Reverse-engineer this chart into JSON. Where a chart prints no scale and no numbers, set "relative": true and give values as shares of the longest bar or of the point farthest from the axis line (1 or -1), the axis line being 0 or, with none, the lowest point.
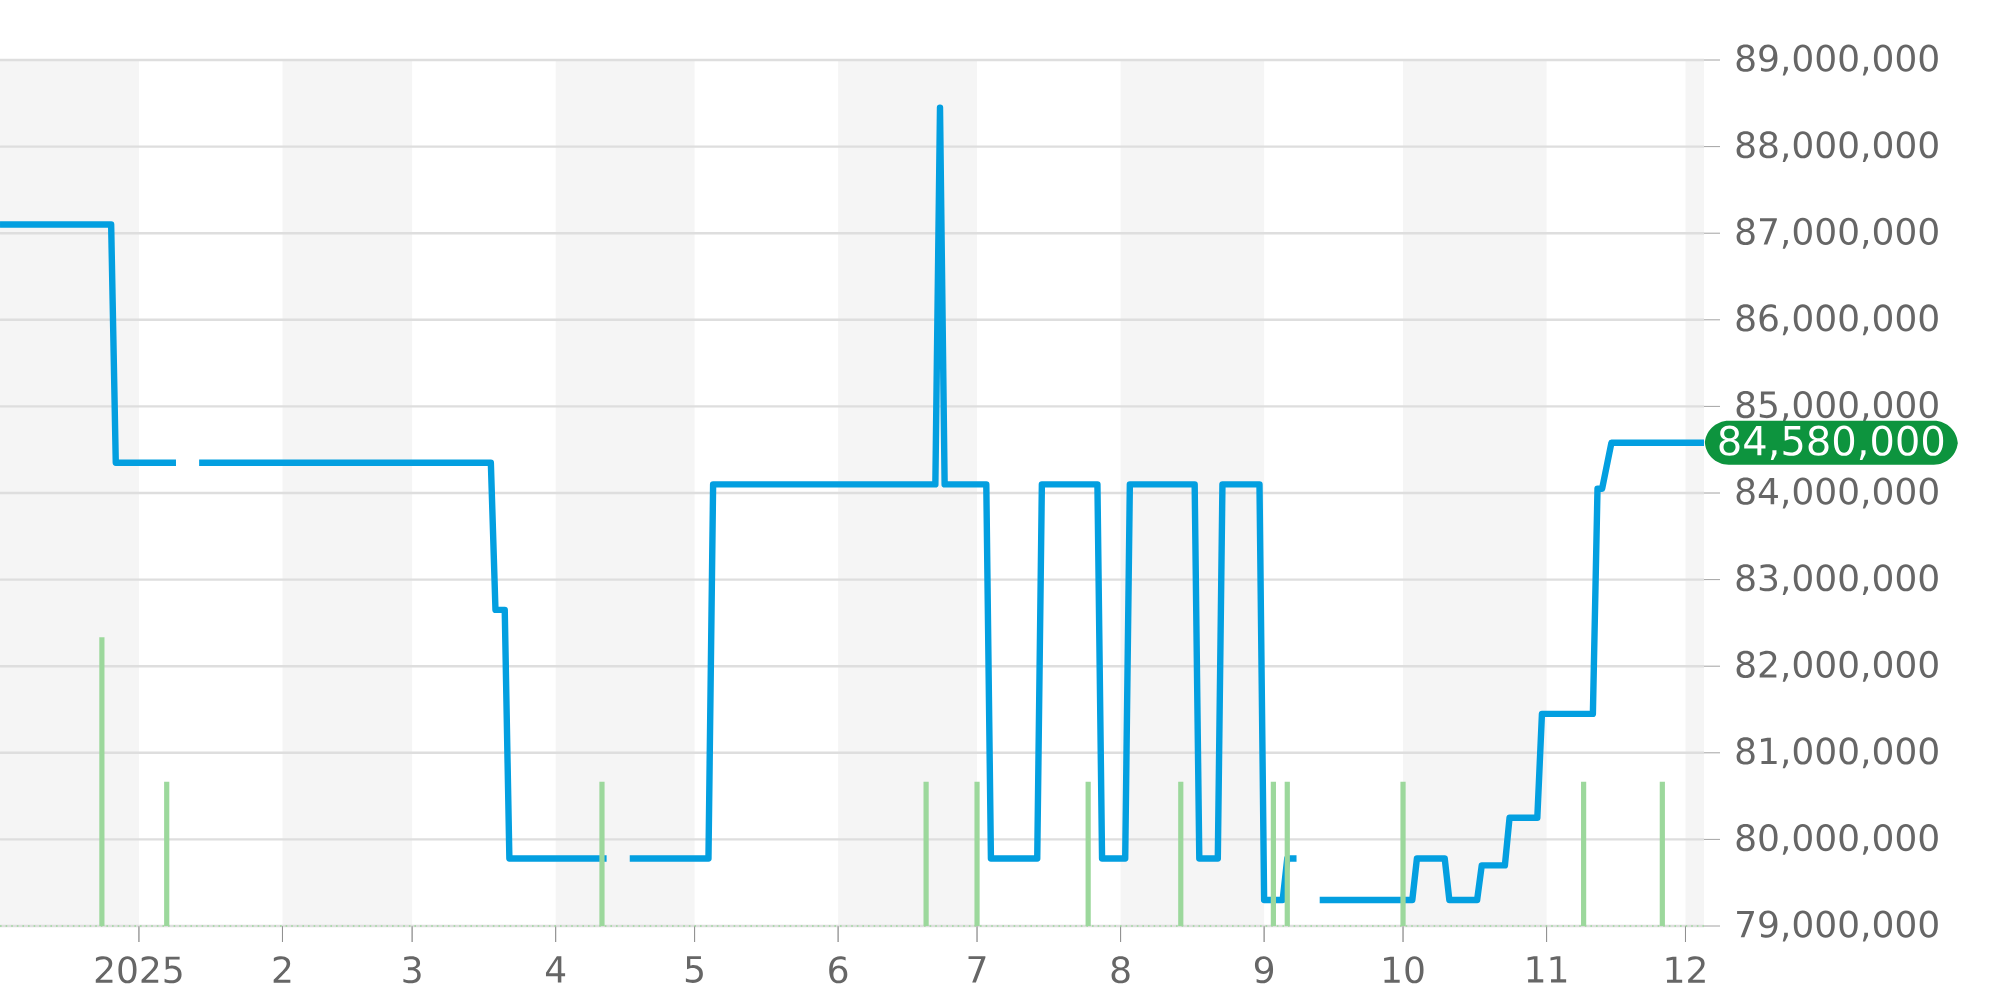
{
  "chart_data": [
    {
      "type": "line",
      "xlim": [
        "2024-12-02",
        "2025-12-05"
      ],
      "xticks": [
        {
          "value": "2025-01-01",
          "label": null
        },
        {
          "value": "2025-02-01",
          "label": null
        },
        {
          "value": "2025-03-01",
          "label": null
        },
        {
          "value": "2025-04-01",
          "label": null
        },
        {
          "value": "2025-05-01",
          "label": null
        },
        {
          "value": "2025-06-01",
          "label": null
        },
        {
          "value": "2025-07-01",
          "label": null
        },
        {
          "value": "2025-08-01",
          "label": null
        },
        {
          "value": "2025-09-01",
          "label": null
        },
        {
          "value": "2025-10-01",
          "label": null
        },
        {
          "value": "2025-11-01",
          "label": null
        },
        {
          "value": "2025-12-01",
          "label": null
        }
      ],
      "ylim": [
        79000000,
        89000000
      ],
      "yticks": [
        {
          "value": 79000000,
          "label": "79,000,000"
        },
        {
          "value": 80000000,
          "label": "80,000,000"
        },
        {
          "value": 81000000,
          "label": "81,000,000"
        },
        {
          "value": 82000000,
          "label": "82,000,000"
        },
        {
          "value": 83000000,
          "label": "83,000,000"
        },
        {
          "value": 84000000,
          "label": "84,000,000"
        },
        {
          "value": 85000000,
          "label": "85,000,000"
        },
        {
          "value": 86000000,
          "label": "86,000,000"
        },
        {
          "value": 87000000,
          "label": "87,000,000"
        },
        {
          "value": 88000000,
          "label": "88,000,000"
        },
        {
          "value": 89000000,
          "label": "89,000,000"
        }
      ],
      "grid": "y",
      "tick_labels": "y",
      "bands": [
        {
          "axis": "x",
          "from": "2024-12-02",
          "to": "2025-01-01",
          "color": "#f5f5f5"
        },
        {
          "axis": "x",
          "from": "2025-02-01",
          "to": "2025-03-01",
          "color": "#f5f5f5"
        },
        {
          "axis": "x",
          "from": "2025-04-01",
          "to": "2025-05-01",
          "color": "#f5f5f5"
        },
        {
          "axis": "x",
          "from": "2025-06-01",
          "to": "2025-07-01",
          "color": "#f5f5f5"
        },
        {
          "axis": "x",
          "from": "2025-08-01",
          "to": "2025-09-01",
          "color": "#f5f5f5"
        },
        {
          "axis": "x",
          "from": "2025-10-01",
          "to": "2025-11-01",
          "color": "#f5f5f5"
        },
        {
          "axis": "x",
          "from": "2025-12-01",
          "to": "2025-12-05",
          "color": "#f5f5f5"
        }
      ],
      "annotations": [
        {
          "text": "84,580,000",
          "x": "2025-12-05",
          "y": 84580000
        }
      ],
      "series": [
        {
          "color": "#039fe0",
          "x": [
            "2024-12-02",
            "2024-12-26",
            "2024-12-27",
            "2025-01-09",
            "2025-01-11",
            "2025-01-14",
            "2025-03-18",
            "2025-03-19",
            "2025-03-21",
            "2025-03-22",
            "2025-04-12",
            "2025-04-14",
            "2025-04-17",
            "2025-05-04",
            "2025-05-05",
            "2025-06-22",
            "2025-06-23",
            "2025-06-24",
            "2025-07-03",
            "2025-07-04",
            "2025-07-14",
            "2025-07-15",
            "2025-07-27",
            "2025-07-28",
            "2025-08-02",
            "2025-08-03",
            "2025-08-17",
            "2025-08-18",
            "2025-08-22",
            "2025-08-23",
            "2025-08-31",
            "2025-09-01",
            "2025-09-05",
            "2025-09-06",
            "2025-09-08",
            "2025-09-10",
            "2025-09-13",
            "2025-10-03",
            "2025-10-04",
            "2025-10-10",
            "2025-10-11",
            "2025-10-17",
            "2025-10-18",
            "2025-10-23",
            "2025-10-24",
            "2025-10-30",
            "2025-10-31",
            "2025-11-11",
            "2025-11-12",
            "2025-11-13",
            "2025-11-15",
            "2025-12-05"
          ],
          "values": [
            87100000,
            87100000,
            84350000,
            84350000,
            null,
            84350000,
            84350000,
            82650000,
            82650000,
            79780000,
            79780000,
            null,
            79780000,
            79780000,
            84100000,
            84100000,
            88450000,
            84100000,
            84100000,
            79780000,
            79780000,
            84100000,
            84100000,
            79780000,
            79780000,
            84100000,
            84100000,
            79780000,
            79780000,
            84100000,
            84100000,
            79300000,
            79300000,
            79780000,
            79780000,
            null,
            79300000,
            79300000,
            79780000,
            79780000,
            79300000,
            79300000,
            79700000,
            79700000,
            80250000,
            80250000,
            81450000,
            81450000,
            84050000,
            84050000,
            84580000,
            84580000
          ]
        }
      ]
    },
    {
      "type": "bar",
      "relative": true,
      "tick_labels": "x",
      "xlim": [
        "2024-12-02",
        "2025-12-05"
      ],
      "xticks": [
        {
          "value": "2025-01-01",
          "label": "2025"
        },
        {
          "value": "2025-02-01",
          "label": "2"
        },
        {
          "value": "2025-03-01",
          "label": "3"
        },
        {
          "value": "2025-04-01",
          "label": "4"
        },
        {
          "value": "2025-05-01",
          "label": "5"
        },
        {
          "value": "2025-06-01",
          "label": "6"
        },
        {
          "value": "2025-07-01",
          "label": "7"
        },
        {
          "value": "2025-08-01",
          "label": "8"
        },
        {
          "value": "2025-09-01",
          "label": "9"
        },
        {
          "value": "2025-10-01",
          "label": "10"
        },
        {
          "value": "2025-11-01",
          "label": "11"
        },
        {
          "value": "2025-12-01",
          "label": "12"
        }
      ],
      "x": [
        "2024-12-24",
        "2025-01-07",
        "2025-04-11",
        "2025-06-20",
        "2025-07-01",
        "2025-07-25",
        "2025-08-14",
        "2025-09-03",
        "2025-09-06",
        "2025-10-01",
        "2025-11-09",
        "2025-11-26"
      ],
      "color": "#9cd89c",
      "values": [
        1,
        0.5,
        0.5,
        0.5,
        0.5,
        0.5,
        0.5,
        0.5,
        0.5,
        0.5,
        0.5,
        0.5
      ]
    }
  ]
}
